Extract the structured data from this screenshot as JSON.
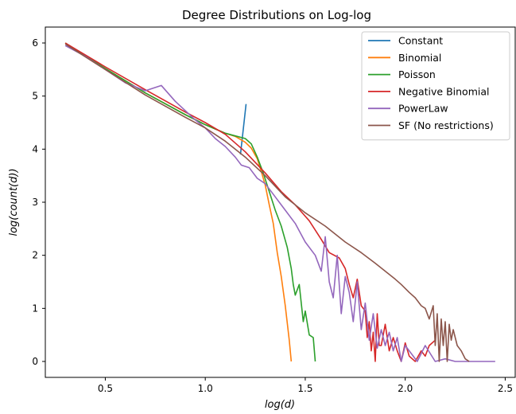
{
  "chart_data": {
    "type": "line",
    "title": "Degree Distributions on Log-log",
    "xlabel": "log(d)",
    "ylabel": "log(count(d))",
    "xlim": [
      0.2,
      2.55
    ],
    "ylim": [
      -0.3,
      6.3
    ],
    "xticks": [
      0.5,
      1.0,
      1.5,
      2.0,
      2.5
    ],
    "xtick_labels": [
      "0.5",
      "1.0",
      "1.5",
      "2.0",
      "2.5"
    ],
    "yticks": [
      0,
      1,
      2,
      3,
      4,
      5,
      6
    ],
    "ytick_labels": [
      "0",
      "1",
      "2",
      "3",
      "4",
      "5",
      "6"
    ],
    "grid": false,
    "legend_position": "top-right",
    "series": [
      {
        "name": "Constant",
        "color": "#1f77b4",
        "x": [
          1.176,
          1.204
        ],
        "y": [
          3.9,
          4.85
        ]
      },
      {
        "name": "Binomial",
        "color": "#ff7f0e",
        "x": [
          0.3,
          0.5,
          0.7,
          0.9,
          1.0,
          1.1,
          1.15,
          1.2,
          1.23,
          1.26,
          1.28,
          1.3,
          1.32,
          1.34,
          1.36,
          1.38,
          1.4,
          1.42,
          1.43
        ],
        "y": [
          6.0,
          5.52,
          5.06,
          4.65,
          4.46,
          4.3,
          4.24,
          4.13,
          4.02,
          3.82,
          3.58,
          3.32,
          2.95,
          2.6,
          2.05,
          1.6,
          1.05,
          0.4,
          0.0
        ]
      },
      {
        "name": "Poisson",
        "color": "#2ca02c",
        "x": [
          0.3,
          0.5,
          0.7,
          0.9,
          1.0,
          1.1,
          1.15,
          1.2,
          1.23,
          1.26,
          1.29,
          1.32,
          1.35,
          1.38,
          1.41,
          1.43,
          1.44,
          1.45,
          1.47,
          1.49,
          1.5,
          1.52,
          1.54,
          1.55
        ],
        "y": [
          6.0,
          5.52,
          5.06,
          4.65,
          4.46,
          4.3,
          4.25,
          4.2,
          4.1,
          3.85,
          3.55,
          3.2,
          2.85,
          2.55,
          2.15,
          1.75,
          1.45,
          1.25,
          1.45,
          0.75,
          0.95,
          0.5,
          0.45,
          0.0
        ]
      },
      {
        "name": "Negative Binomial",
        "color": "#d62728",
        "x": [
          0.3,
          0.5,
          0.7,
          0.9,
          1.0,
          1.1,
          1.2,
          1.3,
          1.38,
          1.45,
          1.52,
          1.58,
          1.62,
          1.67,
          1.7,
          1.72,
          1.74,
          1.76,
          1.78,
          1.8,
          1.81,
          1.82,
          1.83,
          1.84,
          1.85,
          1.86,
          1.87,
          1.88,
          1.9,
          1.92,
          1.94,
          1.96,
          1.98,
          2.0,
          2.02,
          2.05,
          2.08,
          2.1,
          2.12,
          2.15
        ],
        "y": [
          6.0,
          5.55,
          5.12,
          4.7,
          4.5,
          4.28,
          3.95,
          3.55,
          3.2,
          2.95,
          2.65,
          2.3,
          2.05,
          1.95,
          1.75,
          1.45,
          1.2,
          1.55,
          1.05,
          0.95,
          0.45,
          0.75,
          0.2,
          0.55,
          0.0,
          0.9,
          0.3,
          0.3,
          0.7,
          0.2,
          0.45,
          0.2,
          0.0,
          0.35,
          0.1,
          0.0,
          0.2,
          0.1,
          0.3,
          0.4
        ]
      },
      {
        "name": "PowerLaw",
        "color": "#9467bd",
        "x": [
          0.3,
          0.4,
          0.5,
          0.6,
          0.7,
          0.78,
          0.85,
          0.95,
          1.0,
          1.05,
          1.1,
          1.15,
          1.18,
          1.22,
          1.26,
          1.3,
          1.35,
          1.4,
          1.45,
          1.5,
          1.55,
          1.58,
          1.6,
          1.62,
          1.64,
          1.66,
          1.68,
          1.7,
          1.72,
          1.74,
          1.76,
          1.78,
          1.8,
          1.82,
          1.84,
          1.86,
          1.88,
          1.9,
          1.92,
          1.94,
          1.96,
          1.98,
          2.0,
          2.03,
          2.06,
          2.1,
          2.15,
          2.2,
          2.25,
          2.3,
          2.35,
          2.4,
          2.45
        ],
        "y": [
          5.95,
          5.75,
          5.5,
          5.25,
          5.1,
          5.2,
          4.9,
          4.55,
          4.4,
          4.2,
          4.05,
          3.85,
          3.7,
          3.65,
          3.45,
          3.35,
          3.1,
          2.85,
          2.6,
          2.25,
          2.0,
          1.7,
          2.35,
          1.5,
          1.2,
          2.0,
          0.9,
          1.6,
          1.3,
          0.75,
          1.5,
          0.6,
          1.1,
          0.4,
          0.9,
          0.25,
          0.6,
          0.3,
          0.55,
          0.2,
          0.45,
          0.0,
          0.3,
          0.15,
          0.0,
          0.3,
          0.0,
          0.05,
          0.0,
          0.0,
          0.0,
          0.0,
          0.0
        ]
      },
      {
        "name": "SF (No restrictions)",
        "color": "#8c564b",
        "x": [
          0.3,
          0.5,
          0.7,
          0.9,
          1.0,
          1.1,
          1.2,
          1.3,
          1.4,
          1.5,
          1.6,
          1.7,
          1.78,
          1.85,
          1.9,
          1.95,
          1.98,
          2.02,
          2.05,
          2.08,
          2.1,
          2.12,
          2.14,
          2.15,
          2.16,
          2.17,
          2.18,
          2.19,
          2.2,
          2.21,
          2.22,
          2.23,
          2.24,
          2.26,
          2.28,
          2.3,
          2.32
        ],
        "y": [
          5.98,
          5.5,
          5.02,
          4.6,
          4.4,
          4.15,
          3.85,
          3.5,
          3.1,
          2.8,
          2.55,
          2.25,
          2.05,
          1.85,
          1.7,
          1.55,
          1.45,
          1.3,
          1.2,
          1.05,
          1.0,
          0.8,
          1.05,
          0.3,
          0.9,
          0.0,
          0.8,
          0.3,
          0.75,
          0.0,
          0.7,
          0.4,
          0.6,
          0.3,
          0.2,
          0.05,
          0.0
        ]
      }
    ]
  }
}
